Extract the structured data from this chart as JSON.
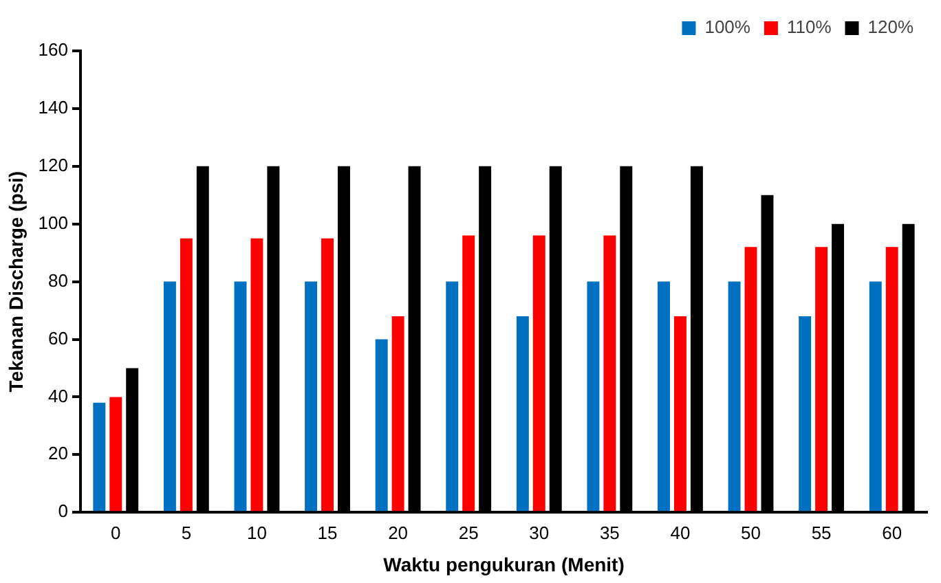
{
  "chart_data": {
    "type": "bar",
    "xlabel": "Waktu pengukuran (Menit)",
    "ylabel": "Tekanan Discharge (psi)",
    "categories": [
      "0",
      "5",
      "10",
      "15",
      "20",
      "25",
      "30",
      "35",
      "40",
      "50",
      "55",
      "60"
    ],
    "series": [
      {
        "name": "100%",
        "color": "#0070c0",
        "values": [
          38,
          80,
          80,
          80,
          60,
          80,
          68,
          80,
          80,
          80,
          68,
          80
        ]
      },
      {
        "name": "110%",
        "color": "#ff0000",
        "values": [
          40,
          95,
          95,
          95,
          68,
          96,
          96,
          96,
          68,
          92,
          92,
          92
        ]
      },
      {
        "name": "120%",
        "color": "#000000",
        "values": [
          50,
          120,
          120,
          120,
          120,
          120,
          120,
          120,
          120,
          110,
          100,
          100
        ]
      }
    ],
    "ylim": [
      0,
      160
    ],
    "yticks": [
      0,
      20,
      40,
      60,
      80,
      100,
      120,
      140,
      160
    ],
    "grid": false,
    "legend": "top right"
  }
}
